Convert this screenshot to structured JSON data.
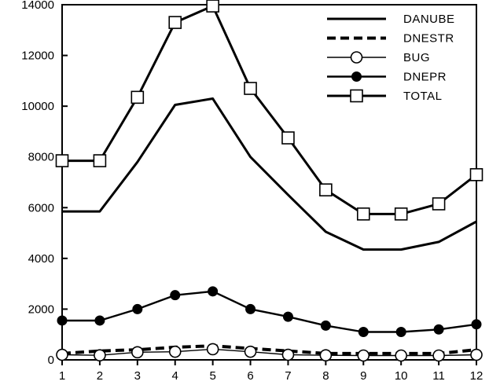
{
  "chart_data": {
    "type": "line",
    "title": "",
    "xlabel": "",
    "ylabel": "",
    "x": [
      1,
      2,
      3,
      4,
      5,
      6,
      7,
      8,
      9,
      10,
      11,
      12
    ],
    "xlim": [
      1,
      12
    ],
    "ylim": [
      0,
      14000
    ],
    "yticks": [
      0,
      2000,
      4000,
      6000,
      8000,
      10000,
      12000,
      14000
    ],
    "grid": false,
    "legend_position": "top-right",
    "series": [
      {
        "name": "DANUBE",
        "style": "solid-thick",
        "marker": "none",
        "values": [
          5850,
          5850,
          7800,
          10050,
          10300,
          8000,
          6500,
          5050,
          4350,
          4350,
          4650,
          5450
        ]
      },
      {
        "name": "DNESTR",
        "style": "dashed",
        "marker": "none",
        "values": [
          250,
          350,
          400,
          500,
          550,
          450,
          350,
          250,
          250,
          250,
          250,
          400
        ]
      },
      {
        "name": "BUG",
        "style": "solid-thin",
        "marker": "open-circle",
        "values": [
          200,
          180,
          300,
          320,
          420,
          320,
          200,
          180,
          170,
          170,
          170,
          200
        ]
      },
      {
        "name": "DNEPR",
        "style": "solid",
        "marker": "filled-circle",
        "values": [
          1550,
          1550,
          2000,
          2550,
          2700,
          2000,
          1700,
          1350,
          1100,
          1100,
          1200,
          1400
        ]
      },
      {
        "name": "TOTAL",
        "style": "solid-thick",
        "marker": "open-square",
        "values": [
          7850,
          7850,
          10350,
          13300,
          13950,
          10700,
          8750,
          6700,
          5750,
          5750,
          6150,
          7300
        ]
      }
    ]
  }
}
